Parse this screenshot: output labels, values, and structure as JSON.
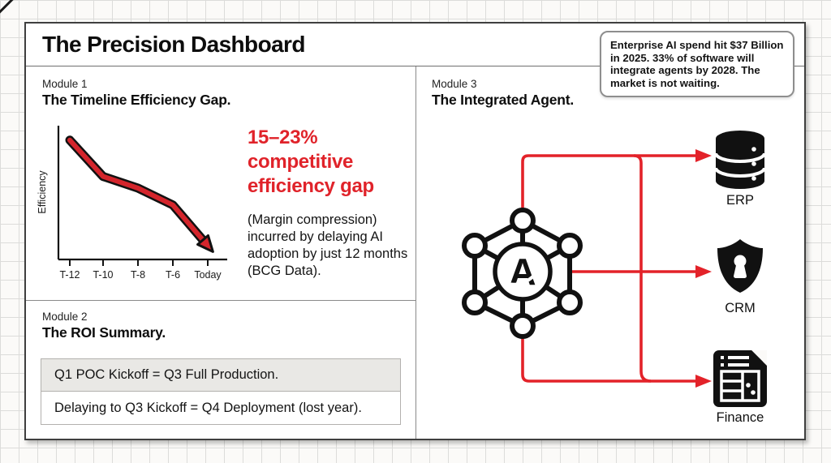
{
  "title": "The Precision Dashboard",
  "callout": {
    "text": "Enterprise AI spend hit $37 Billion in 2025. 33% of software will integrate agents by 2028. The market is not waiting."
  },
  "modules": {
    "module1": {
      "label": "Module 1",
      "title": "The Timeline Efficiency Gap.",
      "headline": "15–23% competitive efficiency gap",
      "subtext": "(Margin compression) incurred by delaying AI adoption by just 12 months (BCG Data)."
    },
    "module2": {
      "label": "Module 2",
      "title": "The ROI Summary.",
      "rows": [
        "Q1 POC Kickoff = Q3 Full Production.",
        "Delaying to Q3 Kickoff = Q4 Deployment (lost year)."
      ]
    },
    "module3": {
      "label": "Module 3",
      "title": "The Integrated Agent.",
      "center_logo": "A",
      "targets": [
        "ERP",
        "CRM",
        "Finance"
      ]
    }
  },
  "chart_data": {
    "type": "line",
    "title": "The Timeline Efficiency Gap",
    "x": [
      "T-12",
      "T-10",
      "T-8",
      "T-6",
      "Today"
    ],
    "series": [
      {
        "name": "Efficiency",
        "values": [
          92,
          64,
          55,
          42,
          15
        ]
      }
    ],
    "xlabel": "",
    "ylabel": "Efficiency",
    "ylim": [
      0,
      100
    ],
    "grid": false,
    "annotation": "downward red arrow trend",
    "line_color": "#d4252c"
  },
  "colors": {
    "accent_red": "#e0232a",
    "connector_red": "#e32229",
    "row_alt_bg": "#e9e8e5",
    "ink": "#111111"
  }
}
